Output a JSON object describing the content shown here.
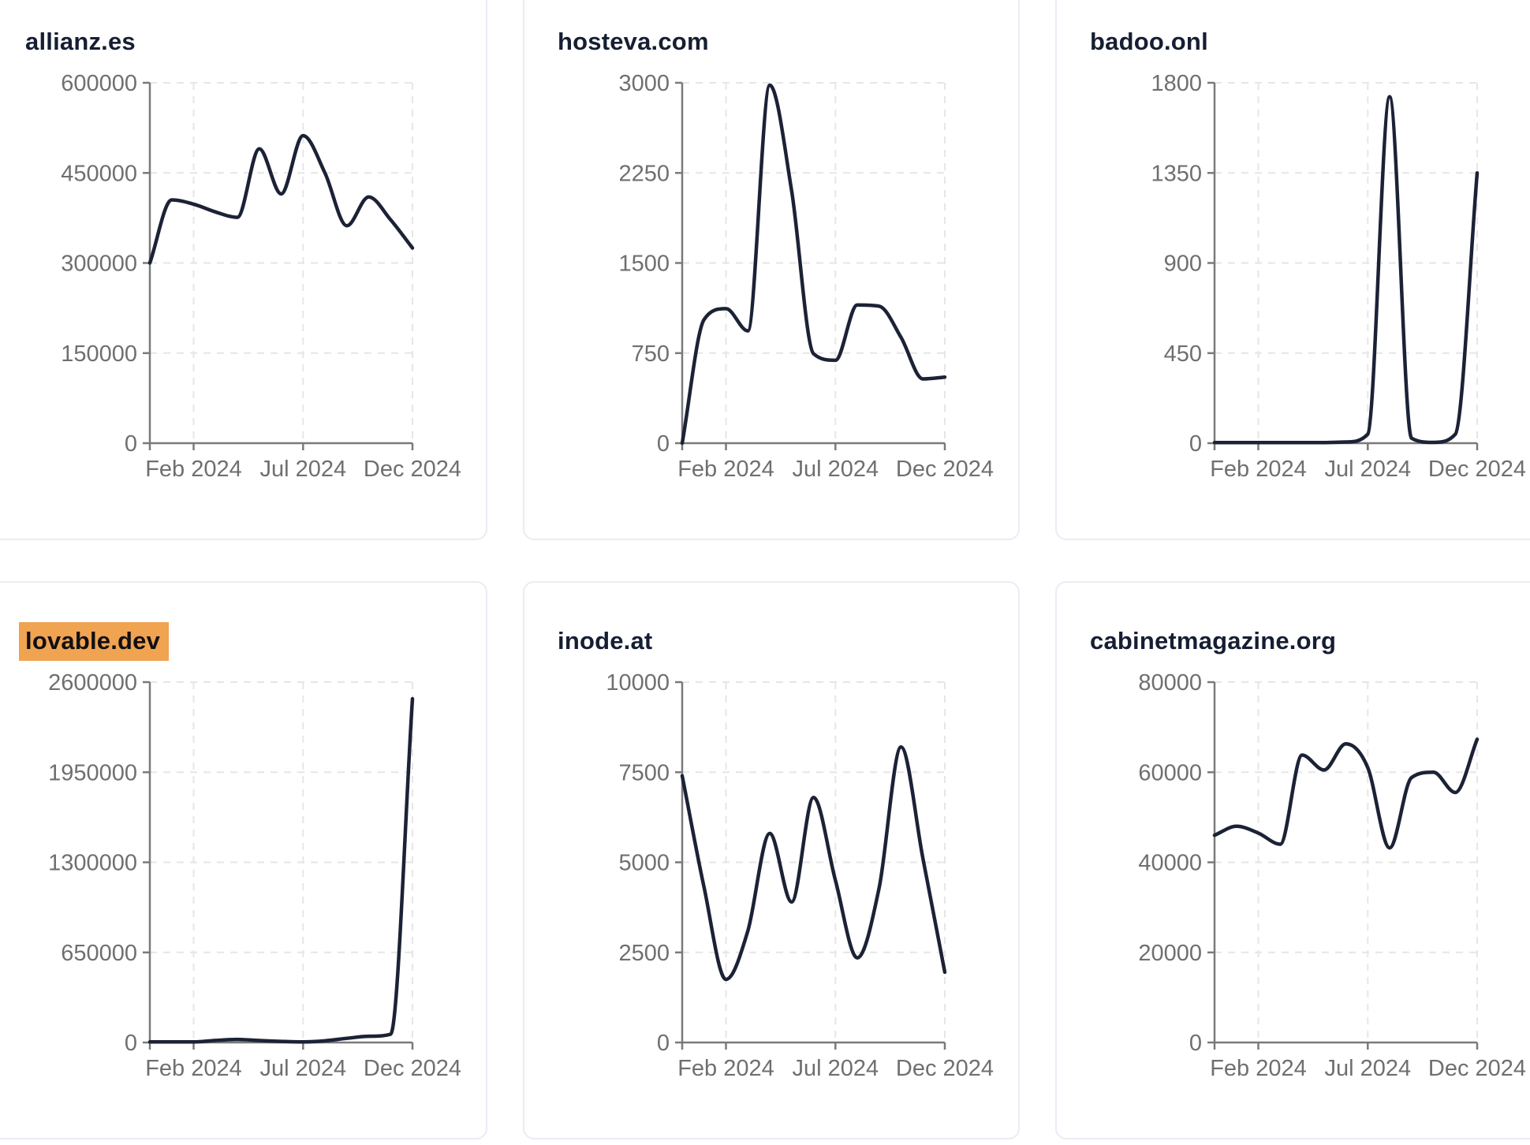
{
  "page": {
    "background": "#FFFFFF",
    "card_background": "#FFFFFF",
    "card_border_color": "#ECEBF4",
    "title_color": "#161E33",
    "highlight_color": "#F0A350",
    "axis_color": "#7A7A7A",
    "tick_label_color": "#6F6F6F",
    "grid_color": "#E6E6E6",
    "line_color": "#1C2236"
  },
  "chart_data": [
    {
      "type": "line",
      "title": "allianz.es",
      "title_highlighted": false,
      "values": [
        300000,
        405000,
        398000,
        385000,
        376000,
        490000,
        415000,
        512000,
        450000,
        362000,
        410000,
        372000,
        325000
      ],
      "ylim": [
        0,
        600000
      ],
      "y_ticks": [
        600000,
        450000,
        300000,
        150000,
        0
      ],
      "y_tick_labels": [
        "600000",
        "450000",
        "300000",
        "150000",
        "0"
      ],
      "x_tick_labels": [
        "Feb 2024",
        "Jul 2024",
        "Dec 2024"
      ],
      "x_tick_positions": [
        2,
        7,
        12
      ],
      "grid": "dashed",
      "legend": "none"
    },
    {
      "type": "line",
      "title": "hosteva.com",
      "title_highlighted": false,
      "values": [
        0,
        1030,
        1120,
        935,
        2980,
        2100,
        745,
        690,
        1150,
        1140,
        880,
        535,
        550
      ],
      "ylim": [
        0,
        3000
      ],
      "y_ticks": [
        3000,
        2250,
        1500,
        750,
        0
      ],
      "y_tick_labels": [
        "3000",
        "2250",
        "1500",
        "750",
        "0"
      ],
      "x_tick_labels": [
        "Feb 2024",
        "Jul 2024",
        "Dec 2024"
      ],
      "x_tick_positions": [
        2,
        7,
        12
      ],
      "grid": "dashed",
      "legend": "none"
    },
    {
      "type": "line",
      "title": "badoo.onl",
      "title_highlighted": false,
      "values": [
        3,
        3,
        3,
        3,
        3,
        3,
        6,
        45,
        1730,
        25,
        4,
        45,
        1350
      ],
      "ylim": [
        0,
        1800
      ],
      "y_ticks": [
        1800,
        1350,
        900,
        450,
        0
      ],
      "y_tick_labels": [
        "1800",
        "1350",
        "900",
        "450",
        "0"
      ],
      "x_tick_labels": [
        "Feb 2024",
        "Jul 2024",
        "Dec 2024"
      ],
      "x_tick_positions": [
        2,
        7,
        12
      ],
      "grid": "dashed",
      "legend": "none"
    },
    {
      "type": "line",
      "title": "lovable.dev",
      "title_highlighted": true,
      "values": [
        4000,
        4000,
        4000,
        15000,
        22000,
        14000,
        8000,
        4000,
        12000,
        30000,
        45000,
        60000,
        2480000
      ],
      "ylim": [
        0,
        2600000
      ],
      "y_ticks": [
        2600000,
        1950000,
        1300000,
        650000,
        0
      ],
      "y_tick_labels": [
        "2600000",
        "1950000",
        "1300000",
        "650000",
        "0"
      ],
      "x_tick_labels": [
        "Feb 2024",
        "Jul 2024",
        "Dec 2024"
      ],
      "x_tick_positions": [
        2,
        7,
        12
      ],
      "grid": "dashed",
      "legend": "none"
    },
    {
      "type": "line",
      "title": "inode.at",
      "title_highlighted": false,
      "values": [
        7400,
        4300,
        1750,
        3100,
        5800,
        3900,
        6800,
        4500,
        2350,
        4300,
        8200,
        5100,
        1950
      ],
      "ylim": [
        0,
        10000
      ],
      "y_ticks": [
        10000,
        7500,
        5000,
        2500,
        0
      ],
      "y_tick_labels": [
        "10000",
        "7500",
        "5000",
        "2500",
        "0"
      ],
      "x_tick_labels": [
        "Feb 2024",
        "Jul 2024",
        "Dec 2024"
      ],
      "x_tick_positions": [
        2,
        7,
        12
      ],
      "grid": "dashed",
      "legend": "none"
    },
    {
      "type": "line",
      "title": "cabinetmagazine.org",
      "title_highlighted": false,
      "values": [
        46000,
        48000,
        46500,
        44000,
        63800,
        60500,
        66300,
        61000,
        43200,
        58800,
        60000,
        55500,
        67300
      ],
      "ylim": [
        0,
        80000
      ],
      "y_ticks": [
        80000,
        60000,
        40000,
        20000,
        0
      ],
      "y_tick_labels": [
        "80000",
        "60000",
        "40000",
        "20000",
        "0"
      ],
      "x_tick_labels": [
        "Feb 2024",
        "Jul 2024",
        "Dec 2024"
      ],
      "x_tick_positions": [
        2,
        7,
        12
      ],
      "grid": "dashed",
      "legend": "none"
    }
  ]
}
